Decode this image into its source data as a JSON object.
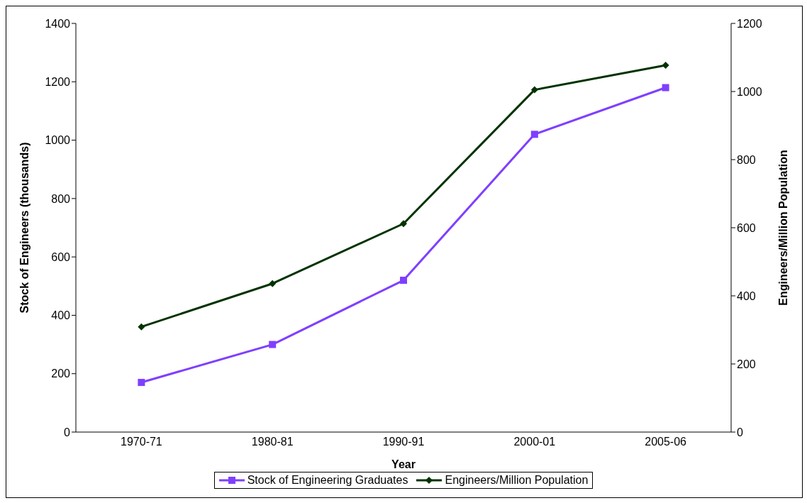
{
  "chart_data": {
    "type": "line",
    "xlabel": "Year",
    "ylabel": "Stock of Engineers (thousands)",
    "y2label": "Engineers/Million Population",
    "categories": [
      "1970-71",
      "1980-81",
      "1990-91",
      "2000-01",
      "2005-06"
    ],
    "series": [
      {
        "name": "Stock of Engineering Graduates",
        "color": "#7f3fff",
        "marker": "square",
        "values": [
          170,
          300,
          520,
          1020,
          1180
        ]
      },
      {
        "name": "Engineers/Million Population",
        "color": "#003300",
        "marker": "diamond",
        "axis": "y2",
        "values": [
          309,
          436,
          612,
          1005,
          1077
        ]
      }
    ],
    "ylim": [
      0,
      1400
    ],
    "yticks": [
      0,
      200,
      400,
      600,
      800,
      1000,
      1200,
      1400
    ],
    "y2lim": [
      0,
      1200
    ],
    "y2ticks": [
      0,
      200,
      400,
      600,
      800,
      1000,
      1200
    ],
    "grid": false,
    "legend": "bottom"
  }
}
